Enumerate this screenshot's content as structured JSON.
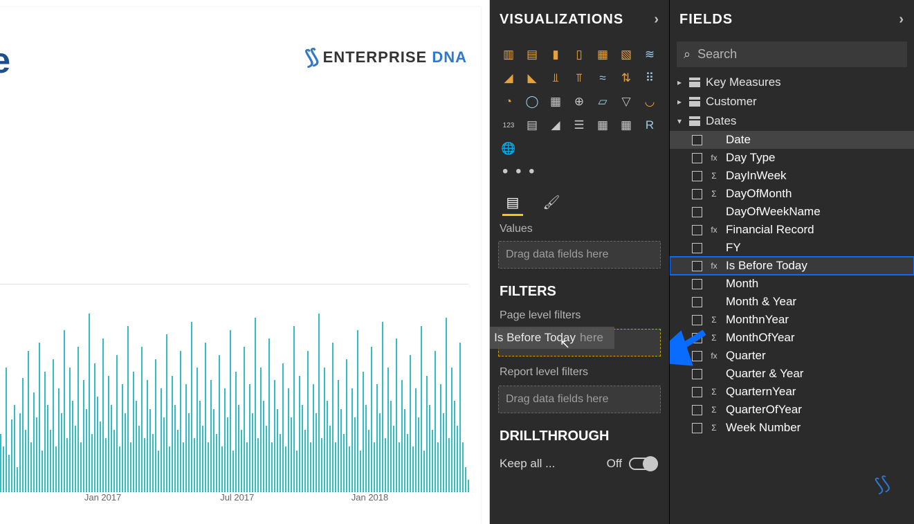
{
  "canvas": {
    "title_fragment": "ate",
    "logo_text_a": "ENTERPRISE ",
    "logo_text_b": "DNA",
    "chart": {
      "type": "bar",
      "bar_color": "#2fbfc1",
      "background_color": "#ffffff",
      "bar_count": 170,
      "ylim_rel": [
        0,
        100
      ],
      "x_labels": [
        {
          "label": "Jan 2017",
          "pos_pct": 18
        },
        {
          "label": "Jul 2017",
          "pos_pct": 47
        },
        {
          "label": "Jan 2018",
          "pos_pct": 75
        }
      ],
      "heights_pct": [
        28,
        22,
        60,
        18,
        35,
        42,
        12,
        38,
        55,
        30,
        68,
        24,
        48,
        36,
        72,
        20,
        58,
        42,
        30,
        64,
        22,
        50,
        38,
        78,
        26,
        60,
        44,
        32,
        70,
        24,
        54,
        40,
        86,
        28,
        62,
        46,
        34,
        74,
        26,
        56,
        42,
        30,
        66,
        22,
        52,
        38,
        80,
        24,
        58,
        44,
        32,
        70,
        26,
        54,
        40,
        28,
        64,
        20,
        50,
        36,
        76,
        22,
        56,
        42,
        30,
        68,
        24,
        52,
        38,
        82,
        26,
        60,
        44,
        32,
        72,
        24,
        54,
        40,
        28,
        66,
        22,
        50,
        36,
        78,
        20,
        58,
        42,
        30,
        70,
        24,
        52,
        38,
        84,
        26,
        60,
        44,
        32,
        74,
        24,
        54,
        40,
        28,
        62,
        22,
        50,
        36,
        80,
        20,
        56,
        42,
        30,
        68,
        24,
        52,
        38,
        86,
        26,
        60,
        44,
        32,
        72,
        24,
        54,
        40,
        28,
        64,
        22,
        50,
        36,
        78,
        20,
        58,
        42,
        30,
        70,
        24,
        52,
        38,
        82,
        26,
        60,
        44,
        32,
        74,
        24,
        54,
        40,
        28,
        66,
        22,
        50,
        36,
        80,
        20,
        56,
        42,
        30,
        68,
        24,
        52,
        38,
        84,
        26,
        60,
        44,
        32,
        72,
        24,
        12,
        6
      ]
    }
  },
  "viz_panel": {
    "title": "VISUALIZATIONS",
    "gallery_icons": [
      {
        "name": "stacked-bar-icon",
        "glyph": "▥",
        "cls": "viz-icon"
      },
      {
        "name": "clustered-bar-icon",
        "glyph": "▤",
        "cls": "viz-icon"
      },
      {
        "name": "stacked-column-icon",
        "glyph": "▮",
        "cls": "viz-icon"
      },
      {
        "name": "clustered-column-icon",
        "glyph": "▯",
        "cls": "viz-icon"
      },
      {
        "name": "100stacked-bar-icon",
        "glyph": "▦",
        "cls": "viz-icon"
      },
      {
        "name": "100stacked-col-icon",
        "glyph": "▧",
        "cls": "viz-icon"
      },
      {
        "name": "line-icon",
        "glyph": "≋",
        "cls": "viz-icon alt"
      },
      {
        "name": "area-icon",
        "glyph": "◢",
        "cls": "viz-icon"
      },
      {
        "name": "stacked-area-icon",
        "glyph": "◣",
        "cls": "viz-icon"
      },
      {
        "name": "line-stacked-icon",
        "glyph": "⫫",
        "cls": "viz-icon"
      },
      {
        "name": "line-clustered-icon",
        "glyph": "⫪",
        "cls": "viz-icon"
      },
      {
        "name": "ribbon-icon",
        "glyph": "≈",
        "cls": "viz-icon alt"
      },
      {
        "name": "waterfall-icon",
        "glyph": "⇅",
        "cls": "viz-icon"
      },
      {
        "name": "scatter-icon",
        "glyph": "⠿",
        "cls": "viz-icon alt"
      },
      {
        "name": "pie-icon",
        "glyph": "◔",
        "cls": "viz-icon"
      },
      {
        "name": "donut-icon",
        "glyph": "◯",
        "cls": "viz-icon alt"
      },
      {
        "name": "treemap-icon",
        "glyph": "▦",
        "cls": "viz-icon gray"
      },
      {
        "name": "map-icon",
        "glyph": "⊕",
        "cls": "viz-icon gray"
      },
      {
        "name": "filled-map-icon",
        "glyph": "▱",
        "cls": "viz-icon alt"
      },
      {
        "name": "funnel-icon",
        "glyph": "▽",
        "cls": "viz-icon gray"
      },
      {
        "name": "gauge-icon",
        "glyph": "◡",
        "cls": "viz-icon"
      },
      {
        "name": "card-icon",
        "glyph": "123",
        "cls": "viz-icon gray",
        "small": true
      },
      {
        "name": "multi-card-icon",
        "glyph": "▤",
        "cls": "viz-icon gray"
      },
      {
        "name": "kpi-icon",
        "glyph": "◢",
        "cls": "viz-icon gray"
      },
      {
        "name": "slicer-icon",
        "glyph": "☰",
        "cls": "viz-icon gray"
      },
      {
        "name": "table-icon",
        "glyph": "▦",
        "cls": "viz-icon gray"
      },
      {
        "name": "matrix-icon",
        "glyph": "▦",
        "cls": "viz-icon gray"
      },
      {
        "name": "r-visual-icon",
        "glyph": "R",
        "cls": "viz-icon alt"
      },
      {
        "name": "arcgis-icon",
        "glyph": "🌐",
        "cls": "viz-icon alt"
      }
    ],
    "more_label": "• • •",
    "values_label": "Values",
    "values_placeholder": "Drag data fields here",
    "filters_header": "FILTERS",
    "page_filters_label": "Page level filters",
    "drag_chip_label": "Is Before Today",
    "drag_target_under_text": "here",
    "report_filters_label": "Report level filters",
    "report_placeholder": "Drag data fields here",
    "drill_header": "DRILLTHROUGH",
    "keep_all_label": "Keep all ...",
    "keep_all_state": "Off"
  },
  "fields_panel": {
    "title": "FIELDS",
    "search_placeholder": "Search",
    "tables": [
      {
        "name": "Key Measures",
        "expanded": false
      },
      {
        "name": "Customer",
        "expanded": false
      },
      {
        "name": "Dates",
        "expanded": true,
        "fields": [
          {
            "label": "Date",
            "type": "",
            "hl": true
          },
          {
            "label": "Day Type",
            "type": "fx"
          },
          {
            "label": "DayInWeek",
            "type": "Σ"
          },
          {
            "label": "DayOfMonth",
            "type": "Σ"
          },
          {
            "label": "DayOfWeekName",
            "type": ""
          },
          {
            "label": "Financial Record",
            "type": "fx"
          },
          {
            "label": "FY",
            "type": ""
          },
          {
            "label": "Is Before Today",
            "type": "fx",
            "selected": true
          },
          {
            "label": "Month",
            "type": ""
          },
          {
            "label": "Month & Year",
            "type": ""
          },
          {
            "label": "MonthnYear",
            "type": "Σ"
          },
          {
            "label": "MonthOfYear",
            "type": "Σ"
          },
          {
            "label": "Quarter",
            "type": "fx"
          },
          {
            "label": "Quarter & Year",
            "type": ""
          },
          {
            "label": "QuarternYear",
            "type": "Σ"
          },
          {
            "label": "QuarterOfYear",
            "type": "Σ"
          },
          {
            "label": "Week Number",
            "type": "Σ"
          }
        ]
      }
    ]
  },
  "colors": {
    "panel_bg": "#2b2b2b",
    "accent_yellow": "#f2c811",
    "teal": "#2fbfc1",
    "highlight_blue": "#0a6bff",
    "logo_blue": "#2f78d0"
  }
}
